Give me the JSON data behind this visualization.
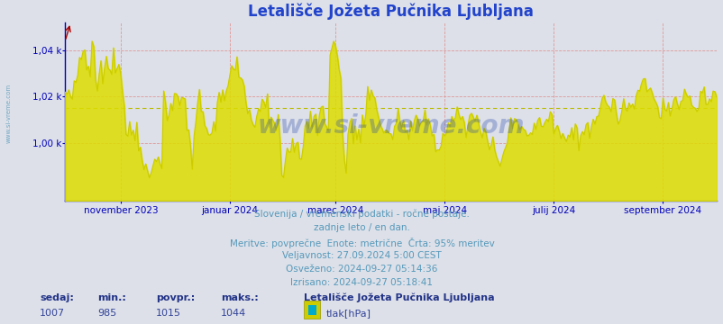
{
  "title": "Letališče Jožeta Pučnika Ljubljana",
  "background_color": "#dde0e8",
  "plot_bg_color": "#dde0e8",
  "line_color": "#cccc00",
  "fill_color": "#dddd00",
  "axis_color": "#0000bb",
  "grid_color_red": "#dd9999",
  "grid_color_yellow": "#bbbb00",
  "text_color": "#5599bb",
  "title_color": "#2244cc",
  "ytick_labels": [
    "1,00 k",
    "1,02 k",
    "1,04 k"
  ],
  "ytick_values": [
    1000,
    1020,
    1040
  ],
  "ymin": 975,
  "ymax": 1052,
  "xlabels": [
    "november 2023",
    "januar 2024",
    "marec 2024",
    "maj 2024",
    "julij 2024",
    "september 2024"
  ],
  "xtick_positions": [
    31,
    92,
    151,
    212,
    273,
    334
  ],
  "watermark_big": "www.si-vreme.com",
  "watermark_side": "www.si-vreme.com",
  "info_line1": "Slovenija / vremenski podatki - ročne postaje.",
  "info_line2": "zadnje leto / en dan.",
  "info_line3": "Meritve: povprečne  Enote: metrične  Črta: 95% meritev",
  "info_line4": "Veljavnost: 27.09.2024 5:00 CEST",
  "info_line5": "Osveženo: 2024-09-27 05:14:36",
  "info_line6": "Izrisano: 2024-09-27 05:18:41",
  "legend_station": "Letališče Jožeta Pučnika Ljubljana",
  "legend_unit": "tlak[hPa]",
  "stat_sedaj_label": "sedaj:",
  "stat_min_label": "min.:",
  "stat_povpr_label": "povpr.:",
  "stat_maks_label": "maks.:",
  "stat_sedaj": "1007",
  "stat_min": "985",
  "stat_povpr": "1015",
  "stat_maks": "1044",
  "legend_color_outer": "#cccc00",
  "legend_color_inner": "#00aacc"
}
